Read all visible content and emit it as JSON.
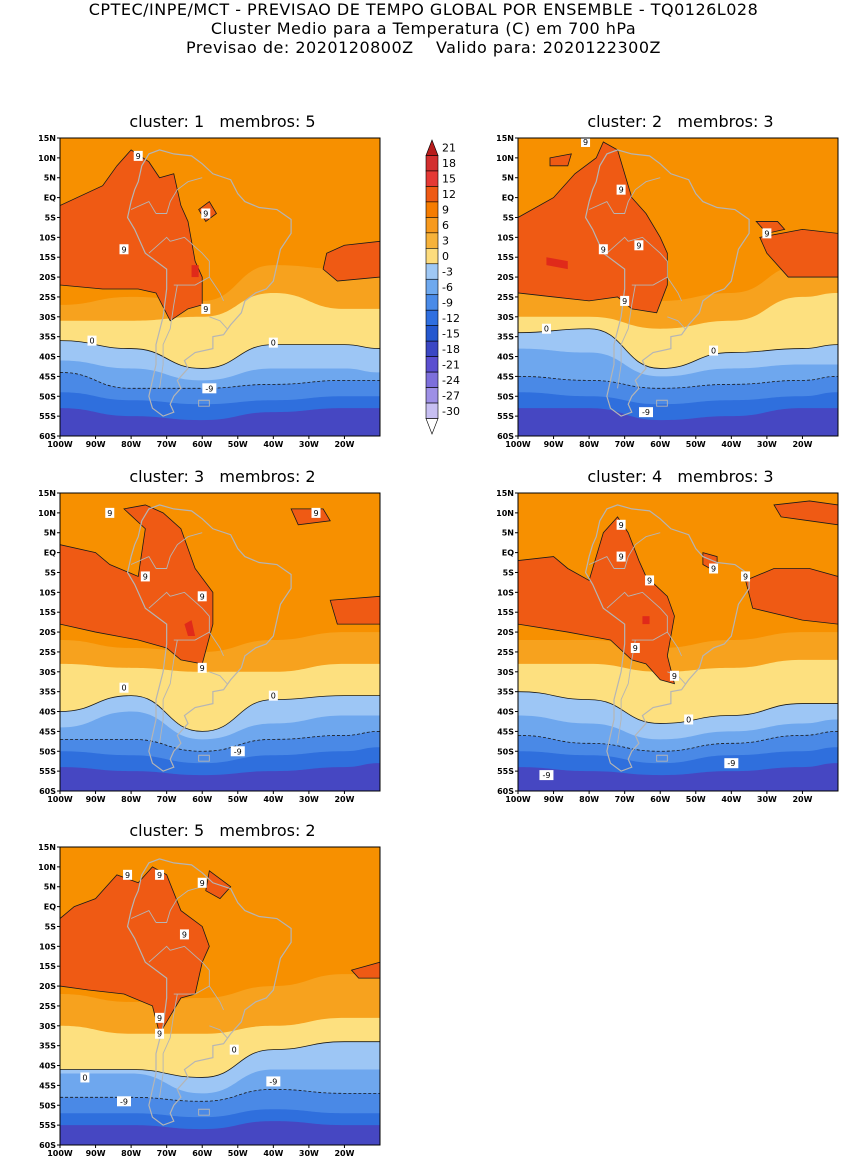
{
  "header": {
    "line1": "CPTEC/INPE/MCT - PREVISAO DE TEMPO GLOBAL POR ENSEMBLE - TQ0126L028",
    "line2": "Cluster Medio para a Temperatura (C) em 700 hPa",
    "line3": "Previsao de: 2020120800Z    Valido para: 2020122300Z"
  },
  "axes": {
    "lat_labels": [
      "15N",
      "10N",
      "5N",
      "EQ",
      "5S",
      "10S",
      "15S",
      "20S",
      "25S",
      "30S",
      "35S",
      "40S",
      "45S",
      "50S",
      "55S",
      "60S"
    ],
    "lon_labels": [
      "100W",
      "90W",
      "80W",
      "70W",
      "60W",
      "50W",
      "40W",
      "30W",
      "20W"
    ]
  },
  "colorbar": {
    "labels": [
      "21",
      "18",
      "15",
      "12",
      "9",
      "6",
      "3",
      "0",
      "-3",
      "-6",
      "-9",
      "-12",
      "-15",
      "-18",
      "-21",
      "-24",
      "-27",
      "-30"
    ],
    "colors": [
      "#b71c1c",
      "#d32f2f",
      "#e53935",
      "#ef5a14",
      "#f57c00",
      "#f79a1e",
      "#f6b23a",
      "#fddc7d",
      "#9fc8f5",
      "#6ea9ef",
      "#4a8be8",
      "#2f6fe0",
      "#2558cf",
      "#3b47c4",
      "#5b4fd0",
      "#7d6fdb",
      "#9e90e6",
      "#c7bff2",
      "#ffffff"
    ]
  },
  "panels": [
    {
      "title": "cluster: 1   membros: 5",
      "labels": [
        {
          "text": "9",
          "lon": -78,
          "lat": 10.5
        },
        {
          "text": "9",
          "lon": -59,
          "lat": -4
        },
        {
          "text": "9",
          "lon": -82,
          "lat": -13
        },
        {
          "text": "9",
          "lon": -59,
          "lat": -28
        },
        {
          "text": "0",
          "lon": -91,
          "lat": -36
        },
        {
          "text": "0",
          "lon": -40,
          "lat": -36.5
        },
        {
          "text": "-9",
          "lon": -58,
          "lat": -48
        }
      ]
    },
    {
      "title": "cluster: 2   membros: 3",
      "labels": [
        {
          "text": "9",
          "lon": -81,
          "lat": 14
        },
        {
          "text": "9",
          "lon": -71,
          "lat": 2
        },
        {
          "text": "9",
          "lon": -76,
          "lat": -13
        },
        {
          "text": "9",
          "lon": -66,
          "lat": -12
        },
        {
          "text": "9",
          "lon": -30,
          "lat": -9
        },
        {
          "text": "9",
          "lon": -70,
          "lat": -26
        },
        {
          "text": "0",
          "lon": -92,
          "lat": -33
        },
        {
          "text": "0",
          "lon": -45,
          "lat": -38.5
        },
        {
          "text": "-9",
          "lon": -64,
          "lat": -54
        }
      ]
    },
    {
      "title": "cluster: 3   membros: 2",
      "labels": [
        {
          "text": "9",
          "lon": -86,
          "lat": 10
        },
        {
          "text": "9",
          "lon": -76,
          "lat": -6
        },
        {
          "text": "9",
          "lon": -60,
          "lat": -11
        },
        {
          "text": "9",
          "lon": -28,
          "lat": 10
        },
        {
          "text": "9",
          "lon": -60,
          "lat": -29
        },
        {
          "text": "0",
          "lon": -82,
          "lat": -34
        },
        {
          "text": "0",
          "lon": -40,
          "lat": -36
        },
        {
          "text": "-9",
          "lon": -50,
          "lat": -50
        }
      ]
    },
    {
      "title": "cluster: 4   membros: 3",
      "labels": [
        {
          "text": "9",
          "lon": -71,
          "lat": 7
        },
        {
          "text": "9",
          "lon": -71,
          "lat": -1
        },
        {
          "text": "9",
          "lon": -63,
          "lat": -7
        },
        {
          "text": "9",
          "lon": -45,
          "lat": -4
        },
        {
          "text": "9",
          "lon": -36,
          "lat": -6
        },
        {
          "text": "9",
          "lon": -67,
          "lat": -24
        },
        {
          "text": "9",
          "lon": -56,
          "lat": -31
        },
        {
          "text": "0",
          "lon": -52,
          "lat": -42
        },
        {
          "text": "-9",
          "lon": -40,
          "lat": -53
        },
        {
          "text": "-9",
          "lon": -92,
          "lat": -56
        }
      ]
    },
    {
      "title": "cluster: 5   membros: 2",
      "labels": [
        {
          "text": "9",
          "lon": -81,
          "lat": 8
        },
        {
          "text": "9",
          "lon": -72,
          "lat": 8
        },
        {
          "text": "9",
          "lon": -60,
          "lat": 6
        },
        {
          "text": "9",
          "lon": -65,
          "lat": -7
        },
        {
          "text": "9",
          "lon": -72,
          "lat": -28
        },
        {
          "text": "9",
          "lon": -72,
          "lat": -32
        },
        {
          "text": "0",
          "lon": -51,
          "lat": -36
        },
        {
          "text": "0",
          "lon": -93,
          "lat": -43
        },
        {
          "text": "-9",
          "lon": -40,
          "lat": -44
        },
        {
          "text": "-9",
          "lon": -82,
          "lat": -49
        }
      ]
    }
  ]
}
